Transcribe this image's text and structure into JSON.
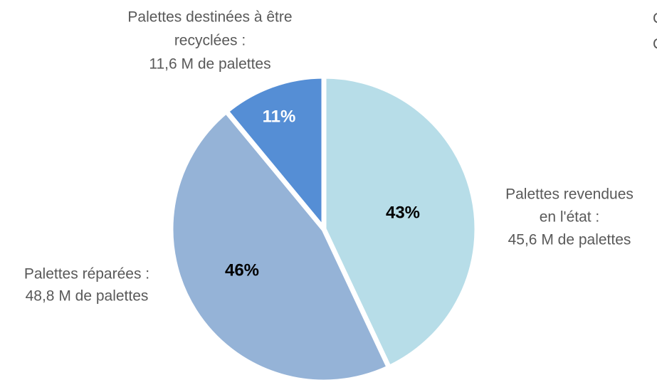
{
  "chart_data": {
    "type": "pie",
    "labels": [
      [
        "Palettes revendues",
        "en l'état :",
        "45,6 M de palettes"
      ],
      [
        "Palettes réparées :",
        "48,8 M de palettes"
      ],
      [
        "Palettes destinées à être",
        "recyclées :",
        "11,6 M de palettes"
      ]
    ],
    "values": [
      43,
      46,
      11
    ],
    "value_labels": [
      "43%",
      "46%",
      "11%"
    ],
    "colors": [
      "#b7dde8",
      "#95b3d7",
      "#558ed5"
    ],
    "value_label_colors": [
      "#000000",
      "#000000",
      "#ffffff"
    ],
    "annotations": [
      "C",
      "C"
    ]
  }
}
